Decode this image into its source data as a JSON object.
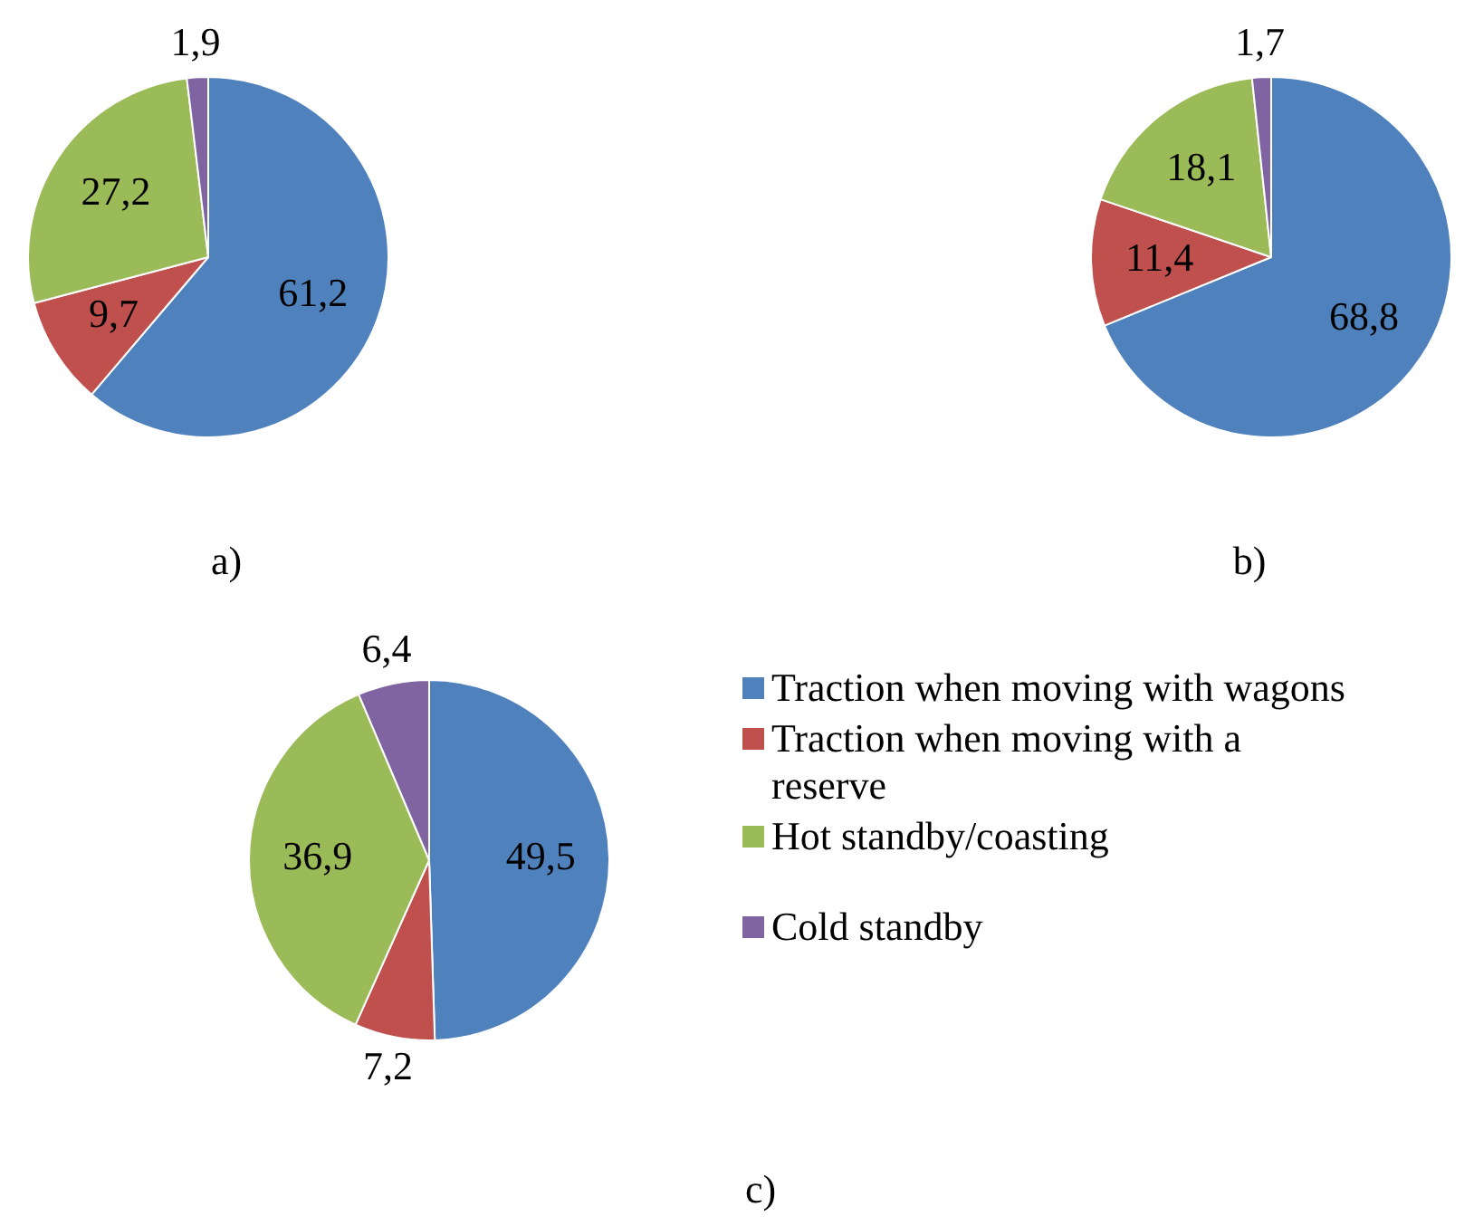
{
  "chart_data": [
    {
      "type": "pie",
      "title": "a)",
      "categories": [
        null,
        null,
        null,
        null
      ],
      "values": [
        61.2,
        9.7,
        27.2,
        1.9
      ],
      "value_labels": [
        "61,2",
        "9,7",
        "27,2",
        "1,9"
      ],
      "colors": [
        "#4f81bd",
        "#c0504d",
        "#9bbb59",
        "#8064a2"
      ]
    },
    {
      "type": "pie",
      "title": "b)",
      "categories": [
        null,
        null,
        null,
        null
      ],
      "values": [
        68.8,
        11.4,
        18.1,
        1.7
      ],
      "value_labels": [
        "68,8",
        "11,4",
        "18,1",
        "1,7"
      ],
      "colors": [
        "#4f81bd",
        "#c0504d",
        "#9bbb59",
        "#8064a2"
      ]
    },
    {
      "type": "pie",
      "title": "c)",
      "categories": [
        "Traction when moving with wagons",
        "Traction when moving with a reserve",
        "Hot standby/coasting",
        "Cold standby"
      ],
      "values": [
        49.5,
        7.2,
        36.9,
        6.4
      ],
      "value_labels": [
        "49,5",
        "7,2",
        "36,9",
        "6,4"
      ],
      "colors": [
        "#4f81bd",
        "#c0504d",
        "#9bbb59",
        "#8064a2"
      ],
      "legend": "right"
    }
  ]
}
